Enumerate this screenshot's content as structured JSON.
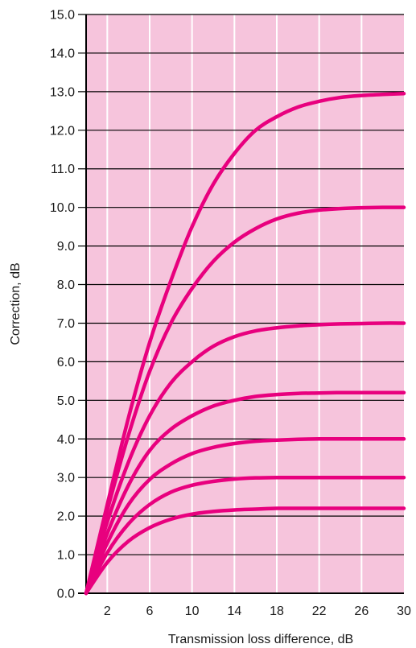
{
  "chart_data": {
    "type": "line",
    "title": "",
    "xlabel": "Transmission loss difference,  dB",
    "ylabel": "Correction, dB",
    "xlim": [
      0,
      30
    ],
    "ylim": [
      0,
      15
    ],
    "x_ticks": [
      2,
      6,
      10,
      14,
      18,
      22,
      26,
      30
    ],
    "x_tick_labels": [
      "2",
      "6",
      "10",
      "14",
      "18",
      "22",
      "26",
      "30"
    ],
    "y_ticks": [
      0,
      1,
      2,
      3,
      4,
      5,
      6,
      7,
      8,
      9,
      10,
      11,
      12,
      13,
      14,
      15
    ],
    "y_tick_labels": [
      "0.0",
      "1.0",
      "2.0",
      "3.0",
      "4.0",
      "5.0",
      "6.0",
      "7.0",
      "8.0",
      "9.0",
      "10.0",
      "11.0",
      "12.0",
      "13.0",
      "14.0",
      "15.0"
    ],
    "grid": true,
    "x": [
      0,
      2,
      4,
      6,
      8,
      10,
      12,
      14,
      16,
      18,
      20,
      22,
      24,
      26,
      28,
      30
    ],
    "series": [
      {
        "values": [
          0,
          0.8,
          1.35,
          1.7,
          1.92,
          2.05,
          2.12,
          2.16,
          2.18,
          2.2,
          2.2,
          2.2,
          2.2,
          2.2,
          2.2,
          2.2
        ]
      },
      {
        "values": [
          0,
          1.05,
          1.8,
          2.3,
          2.62,
          2.8,
          2.9,
          2.96,
          2.99,
          3.0,
          3.0,
          3.0,
          3.0,
          3.0,
          3.0,
          3.0
        ]
      },
      {
        "values": [
          0,
          1.3,
          2.3,
          2.95,
          3.35,
          3.62,
          3.78,
          3.88,
          3.94,
          3.97,
          3.99,
          4.0,
          4.0,
          4.0,
          4.0,
          4.0
        ]
      },
      {
        "values": [
          0,
          1.55,
          2.8,
          3.7,
          4.25,
          4.6,
          4.85,
          5.0,
          5.1,
          5.15,
          5.18,
          5.19,
          5.2,
          5.2,
          5.2,
          5.2
        ]
      },
      {
        "values": [
          0,
          1.85,
          3.4,
          4.6,
          5.45,
          6.0,
          6.4,
          6.65,
          6.8,
          6.88,
          6.93,
          6.96,
          6.98,
          6.99,
          7.0,
          7.0
        ]
      },
      {
        "values": [
          0,
          2.15,
          4.1,
          5.75,
          7.0,
          7.9,
          8.6,
          9.1,
          9.45,
          9.7,
          9.85,
          9.93,
          9.97,
          9.99,
          10.0,
          10.0
        ]
      },
      {
        "values": [
          0,
          2.3,
          4.55,
          6.5,
          8.1,
          9.5,
          10.6,
          11.4,
          12.0,
          12.35,
          12.6,
          12.75,
          12.85,
          12.9,
          12.93,
          12.95
        ]
      }
    ],
    "colors": {
      "background": "#f6c4dc",
      "line": "#e8007e",
      "vertical_grid": "#ffffff",
      "horizontal_grid": "#000000"
    }
  }
}
